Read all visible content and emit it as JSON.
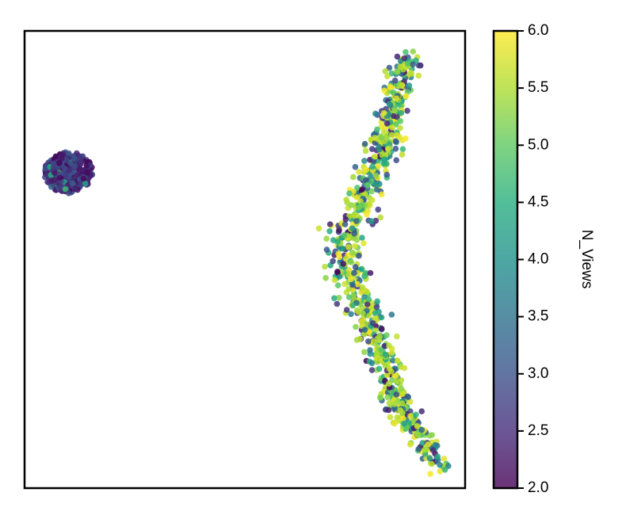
{
  "chart_data": {
    "type": "scatter",
    "title": "",
    "xlabel": "",
    "ylabel": "",
    "xticks_visible": false,
    "yticks_visible": false,
    "grid": false,
    "xlim": [
      0,
      100
    ],
    "ylim": [
      0,
      100
    ],
    "colorbar": {
      "label": "N_Views",
      "colormap": "viridis",
      "range": [
        2.0,
        6.0
      ],
      "ticks": [
        "2.0",
        "2.5",
        "3.0",
        "3.5",
        "4.0",
        "4.5",
        "5.0",
        "5.5",
        "6.0"
      ],
      "alpha": 0.8
    },
    "clusters": [
      {
        "shape": "blob",
        "center": [
          10,
          69
        ],
        "radius": [
          5.5,
          4.5
        ],
        "dominant_value_range": [
          2.0,
          3.2
        ],
        "approx_points": 350
      },
      {
        "shape": "curved-arc",
        "path": [
          [
            87,
            95
          ],
          [
            84,
            84
          ],
          [
            81,
            73
          ],
          [
            77,
            64
          ],
          [
            72,
            53
          ],
          [
            75,
            43
          ],
          [
            80,
            32
          ],
          [
            85,
            18
          ],
          [
            92,
            8
          ],
          [
            95,
            4.5
          ]
        ],
        "value_range": [
          2.0,
          6.0
        ],
        "approx_points": 900
      }
    ]
  }
}
